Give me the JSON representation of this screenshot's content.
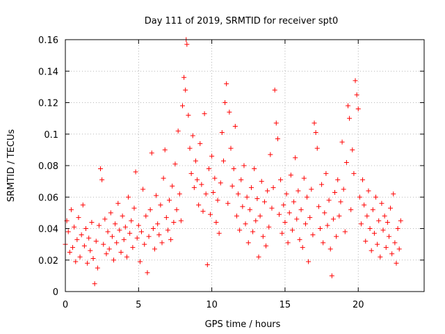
{
  "chart_data": {
    "type": "scatter",
    "title": "Day 111 of 2019, SRMTID for receiver spt0",
    "xlabel": "GPS time / hours",
    "ylabel": "SRMTID / TECUs",
    "xlim": [
      0,
      24.5
    ],
    "ylim": [
      0,
      0.16
    ],
    "x_ticks": [
      0,
      5,
      10,
      15,
      20
    ],
    "x_tick_labels": [
      "0",
      "5",
      "10",
      "15",
      "20"
    ],
    "y_ticks": [
      0,
      0.02,
      0.04,
      0.06,
      0.08,
      0.1,
      0.12,
      0.14,
      0.16
    ],
    "y_tick_labels": [
      "0",
      "0.02",
      "0.04",
      "0.06",
      "0.08",
      "0.1",
      "0.12",
      "0.14",
      "0.16"
    ],
    "grid": true,
    "marker": "plus",
    "series_color": "#ff0000",
    "series": [
      {
        "name": "SRMTID",
        "points": [
          [
            0.0,
            0.03
          ],
          [
            0.1,
            0.045
          ],
          [
            0.2,
            0.038
          ],
          [
            0.3,
            0.025
          ],
          [
            0.4,
            0.052
          ],
          [
            0.5,
            0.028
          ],
          [
            0.6,
            0.041
          ],
          [
            0.7,
            0.019
          ],
          [
            0.8,
            0.033
          ],
          [
            0.9,
            0.047
          ],
          [
            1.0,
            0.022
          ],
          [
            1.1,
            0.036
          ],
          [
            1.2,
            0.055
          ],
          [
            1.3,
            0.029
          ],
          [
            1.4,
            0.04
          ],
          [
            1.5,
            0.018
          ],
          [
            1.6,
            0.034
          ],
          [
            1.7,
            0.026
          ],
          [
            1.8,
            0.044
          ],
          [
            1.9,
            0.021
          ],
          [
            2.0,
            0.005
          ],
          [
            2.1,
            0.032
          ],
          [
            2.2,
            0.015
          ],
          [
            2.3,
            0.042
          ],
          [
            2.4,
            0.078
          ],
          [
            2.5,
            0.071
          ],
          [
            2.6,
            0.03
          ],
          [
            2.7,
            0.046
          ],
          [
            2.8,
            0.024
          ],
          [
            2.9,
            0.038
          ],
          [
            3.0,
            0.027
          ],
          [
            3.1,
            0.05
          ],
          [
            3.2,
            0.035
          ],
          [
            3.3,
            0.02
          ],
          [
            3.4,
            0.043
          ],
          [
            3.5,
            0.031
          ],
          [
            3.6,
            0.056
          ],
          [
            3.7,
            0.039
          ],
          [
            3.8,
            0.025
          ],
          [
            3.9,
            0.048
          ],
          [
            4.0,
            0.033
          ],
          [
            4.1,
            0.041
          ],
          [
            4.2,
            0.022
          ],
          [
            4.3,
            0.06
          ],
          [
            4.4,
            0.037
          ],
          [
            4.5,
            0.045
          ],
          [
            4.6,
            0.028
          ],
          [
            4.7,
            0.053
          ],
          [
            4.8,
            0.076
          ],
          [
            4.9,
            0.034
          ],
          [
            5.0,
            0.042
          ],
          [
            5.1,
            0.019
          ],
          [
            5.2,
            0.038
          ],
          [
            5.3,
            0.065
          ],
          [
            5.4,
            0.03
          ],
          [
            5.5,
            0.048
          ],
          [
            5.6,
            0.012
          ],
          [
            5.7,
            0.035
          ],
          [
            5.8,
            0.052
          ],
          [
            5.9,
            0.088
          ],
          [
            6.0,
            0.04
          ],
          [
            6.1,
            0.027
          ],
          [
            6.2,
            0.061
          ],
          [
            6.3,
            0.043
          ],
          [
            6.4,
            0.036
          ],
          [
            6.5,
            0.055
          ],
          [
            6.6,
            0.031
          ],
          [
            6.7,
            0.072
          ],
          [
            6.8,
            0.09
          ],
          [
            6.9,
            0.047
          ],
          [
            7.0,
            0.039
          ],
          [
            7.1,
            0.058
          ],
          [
            7.2,
            0.033
          ],
          [
            7.3,
            0.067
          ],
          [
            7.4,
            0.044
          ],
          [
            7.5,
            0.081
          ],
          [
            7.6,
            0.052
          ],
          [
            7.7,
            0.102
          ],
          [
            7.8,
            0.062
          ],
          [
            7.9,
            0.045
          ],
          [
            8.0,
            0.118
          ],
          [
            8.1,
            0.136
          ],
          [
            8.2,
            0.128
          ],
          [
            8.25,
            0.16
          ],
          [
            8.3,
            0.157
          ],
          [
            8.4,
            0.112
          ],
          [
            8.5,
            0.091
          ],
          [
            8.6,
            0.075
          ],
          [
            8.7,
            0.099
          ],
          [
            8.8,
            0.066
          ],
          [
            8.9,
            0.083
          ],
          [
            9.0,
            0.071
          ],
          [
            9.1,
            0.055
          ],
          [
            9.2,
            0.094
          ],
          [
            9.3,
            0.068
          ],
          [
            9.4,
            0.051
          ],
          [
            9.5,
            0.113
          ],
          [
            9.6,
            0.062
          ],
          [
            9.7,
            0.017
          ],
          [
            9.8,
            0.078
          ],
          [
            9.9,
            0.049
          ],
          [
            10.0,
            0.086
          ],
          [
            10.1,
            0.063
          ],
          [
            10.2,
            0.072
          ],
          [
            10.3,
            0.044
          ],
          [
            10.4,
            0.058
          ],
          [
            10.5,
            0.037
          ],
          [
            10.6,
            0.069
          ],
          [
            10.7,
            0.101
          ],
          [
            10.8,
            0.083
          ],
          [
            10.9,
            0.12
          ],
          [
            11.0,
            0.132
          ],
          [
            11.1,
            0.056
          ],
          [
            11.2,
            0.114
          ],
          [
            11.3,
            0.091
          ],
          [
            11.4,
            0.067
          ],
          [
            11.5,
            0.078
          ],
          [
            11.6,
            0.105
          ],
          [
            11.7,
            0.048
          ],
          [
            11.8,
            0.062
          ],
          [
            11.9,
            0.039
          ],
          [
            12.0,
            0.071
          ],
          [
            12.1,
            0.054
          ],
          [
            12.2,
            0.08
          ],
          [
            12.3,
            0.043
          ],
          [
            12.4,
            0.06
          ],
          [
            12.5,
            0.031
          ],
          [
            12.6,
            0.052
          ],
          [
            12.7,
            0.066
          ],
          [
            12.8,
            0.038
          ],
          [
            12.9,
            0.078
          ],
          [
            13.0,
            0.045
          ],
          [
            13.1,
            0.059
          ],
          [
            13.2,
            0.022
          ],
          [
            13.3,
            0.048
          ],
          [
            13.4,
            0.07
          ],
          [
            13.5,
            0.035
          ],
          [
            13.6,
            0.057
          ],
          [
            13.7,
            0.029
          ],
          [
            13.8,
            0.064
          ],
          [
            13.9,
            0.041
          ],
          [
            14.0,
            0.087
          ],
          [
            14.1,
            0.053
          ],
          [
            14.2,
            0.066
          ],
          [
            14.3,
            0.128
          ],
          [
            14.4,
            0.107
          ],
          [
            14.5,
            0.097
          ],
          [
            14.6,
            0.049
          ],
          [
            14.7,
            0.071
          ],
          [
            14.8,
            0.037
          ],
          [
            14.9,
            0.055
          ],
          [
            15.0,
            0.044
          ],
          [
            15.1,
            0.062
          ],
          [
            15.2,
            0.031
          ],
          [
            15.3,
            0.05
          ],
          [
            15.4,
            0.074
          ],
          [
            15.5,
            0.039
          ],
          [
            15.6,
            0.057
          ],
          [
            15.7,
            0.085
          ],
          [
            15.8,
            0.046
          ],
          [
            15.9,
            0.064
          ],
          [
            16.0,
            0.033
          ],
          [
            16.1,
            0.052
          ],
          [
            16.2,
            0.028
          ],
          [
            16.3,
            0.072
          ],
          [
            16.4,
            0.043
          ],
          [
            16.5,
            0.06
          ],
          [
            16.6,
            0.019
          ],
          [
            16.7,
            0.047
          ],
          [
            16.8,
            0.065
          ],
          [
            16.9,
            0.036
          ],
          [
            17.0,
            0.107
          ],
          [
            17.1,
            0.101
          ],
          [
            17.2,
            0.091
          ],
          [
            17.3,
            0.054
          ],
          [
            17.4,
            0.04
          ],
          [
            17.5,
            0.068
          ],
          [
            17.6,
            0.031
          ],
          [
            17.7,
            0.05
          ],
          [
            17.8,
            0.075
          ],
          [
            17.9,
            0.042
          ],
          [
            18.0,
            0.058
          ],
          [
            18.1,
            0.027
          ],
          [
            18.2,
            0.01
          ],
          [
            18.3,
            0.046
          ],
          [
            18.4,
            0.063
          ],
          [
            18.5,
            0.035
          ],
          [
            18.6,
            0.071
          ],
          [
            18.7,
            0.048
          ],
          [
            18.8,
            0.057
          ],
          [
            18.9,
            0.095
          ],
          [
            19.0,
            0.065
          ],
          [
            19.1,
            0.038
          ],
          [
            19.2,
            0.082
          ],
          [
            19.3,
            0.118
          ],
          [
            19.4,
            0.11
          ],
          [
            19.5,
            0.052
          ],
          [
            19.6,
            0.09
          ],
          [
            19.7,
            0.075
          ],
          [
            19.8,
            0.134
          ],
          [
            19.9,
            0.125
          ],
          [
            20.0,
            0.116
          ],
          [
            20.1,
            0.06
          ],
          [
            20.2,
            0.043
          ],
          [
            20.3,
            0.071
          ],
          [
            20.4,
            0.055
          ],
          [
            20.5,
            0.032
          ],
          [
            20.6,
            0.048
          ],
          [
            20.7,
            0.064
          ],
          [
            20.8,
            0.04
          ],
          [
            20.9,
            0.026
          ],
          [
            21.0,
            0.052
          ],
          [
            21.1,
            0.037
          ],
          [
            21.2,
            0.06
          ],
          [
            21.3,
            0.03
          ],
          [
            21.4,
            0.045
          ],
          [
            21.5,
            0.022
          ],
          [
            21.6,
            0.056
          ],
          [
            21.7,
            0.039
          ],
          [
            21.8,
            0.048
          ],
          [
            21.9,
            0.028
          ],
          [
            22.0,
            0.044
          ],
          [
            22.1,
            0.035
          ],
          [
            22.2,
            0.053
          ],
          [
            22.3,
            0.024
          ],
          [
            22.4,
            0.062
          ],
          [
            22.5,
            0.031
          ],
          [
            22.6,
            0.018
          ],
          [
            22.7,
            0.04
          ],
          [
            22.8,
            0.027
          ],
          [
            22.9,
            0.045
          ]
        ]
      }
    ]
  }
}
